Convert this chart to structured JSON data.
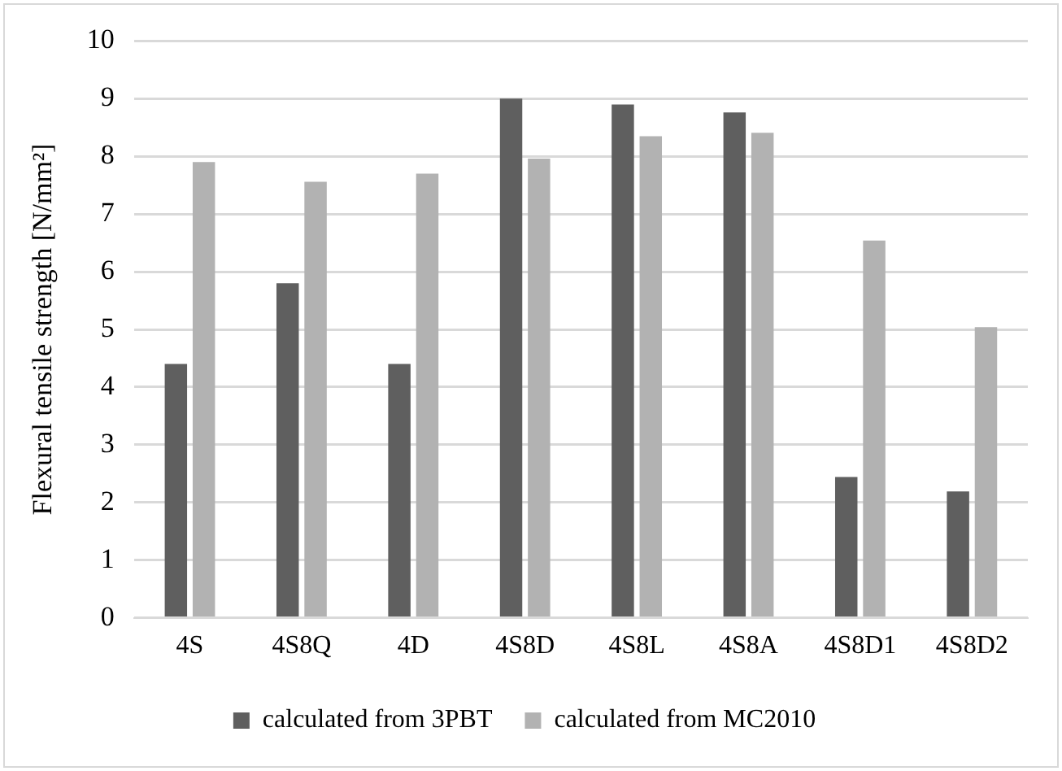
{
  "chart_data": {
    "type": "bar",
    "ylabel": "Flexural tensile strength [N/mm²]",
    "categories": [
      "4S",
      "4S8Q",
      "4D",
      "4S8D",
      "4S8L",
      "4S8A",
      "4S8D1",
      "4S8D2"
    ],
    "series": [
      {
        "name": "calculated from 3PBT",
        "color": "#5f5f5f",
        "values": [
          4.4,
          5.8,
          4.4,
          9.0,
          8.9,
          8.76,
          2.44,
          2.19
        ]
      },
      {
        "name": "calculated from MC2010",
        "color": "#b2b2b2",
        "values": [
          7.9,
          7.56,
          7.7,
          7.96,
          8.35,
          8.41,
          6.54,
          5.04
        ]
      }
    ],
    "ylim": [
      0,
      10
    ],
    "yticks": [
      0,
      1,
      2,
      3,
      4,
      5,
      6,
      7,
      8,
      9,
      10
    ],
    "grid": "y",
    "legend": "bottom"
  }
}
